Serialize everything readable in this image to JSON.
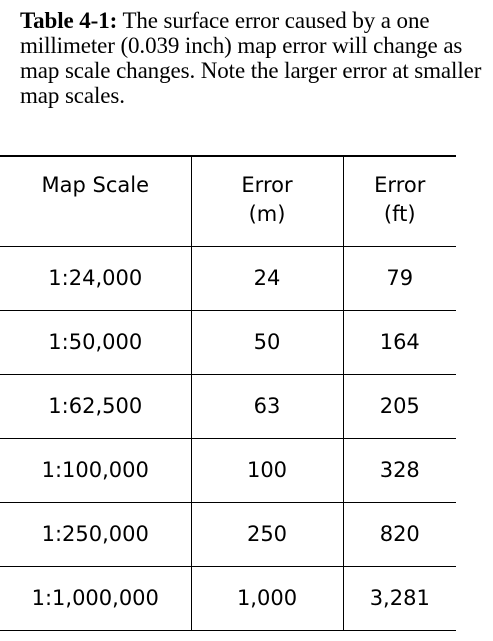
{
  "caption": {
    "label": "Table 4-1:",
    "text": " The surface error caused by a one millimeter (0.039 inch) map error will change as map scale changes. Note the larger error at smaller map scales."
  },
  "table": {
    "headers": [
      {
        "line1": "Map Scale",
        "line2": ""
      },
      {
        "line1": "Error",
        "line2": "(m)"
      },
      {
        "line1": "Error",
        "line2": "(ft)"
      }
    ],
    "rows": [
      [
        "1:24,000",
        "24",
        "79"
      ],
      [
        "1:50,000",
        "50",
        "164"
      ],
      [
        "1:62,500",
        "63",
        "205"
      ],
      [
        "1:100,000",
        "100",
        "328"
      ],
      [
        "1:250,000",
        "250",
        "820"
      ],
      [
        "1:1,000,000",
        "1,000",
        "3,281"
      ]
    ]
  }
}
